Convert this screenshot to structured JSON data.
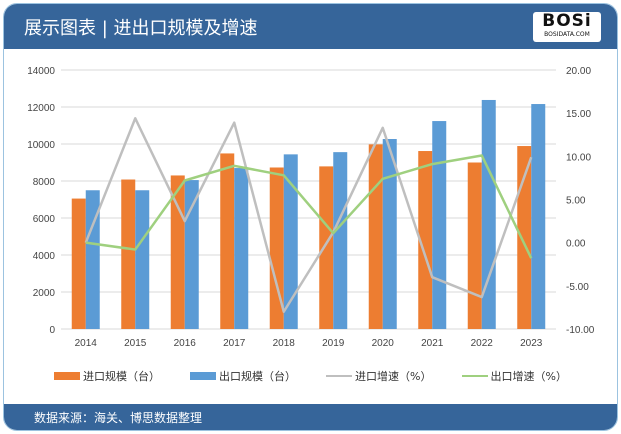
{
  "header": {
    "title": "展示图表 | 进出口规模及增速",
    "logo_text": "BOSi",
    "logo_sub": "BOSIDATA.COM"
  },
  "footer": {
    "source": "数据来源：海关、博思数据整理"
  },
  "colors": {
    "import": "#ed7d31",
    "export": "#5b9bd5",
    "import_growth": "#bfbfbf",
    "export_growth": "#9fd07f",
    "header": "#36659a"
  },
  "chart_data": {
    "type": "bar",
    "categories": [
      "2014",
      "2015",
      "2016",
      "2017",
      "2018",
      "2019",
      "2020",
      "2021",
      "2022",
      "2023"
    ],
    "series": [
      {
        "name": "进口规模（台）",
        "type": "bar",
        "axis": "left",
        "values": [
          7050,
          8080,
          8300,
          9490,
          8730,
          8790,
          9980,
          9620,
          9000,
          9890
        ]
      },
      {
        "name": "出口规模（台）",
        "type": "bar",
        "axis": "left",
        "values": [
          7500,
          7500,
          8050,
          8700,
          9440,
          9560,
          10270,
          11240,
          12380,
          12160
        ]
      },
      {
        "name": "进口增速（%）",
        "type": "line",
        "axis": "right",
        "values": [
          0.0,
          14.4,
          2.5,
          13.9,
          -8.0,
          1.2,
          13.3,
          -4.0,
          -6.3,
          9.9
        ]
      },
      {
        "name": "出口增速（%）",
        "type": "line",
        "axis": "right",
        "values": [
          0.0,
          -0.8,
          7.2,
          8.9,
          7.8,
          1.1,
          7.4,
          9.1,
          10.1,
          -1.8
        ]
      }
    ],
    "y_left": {
      "range": [
        0,
        14000
      ],
      "ticks": [
        "0",
        "2000",
        "4000",
        "6000",
        "8000",
        "10000",
        "12000",
        "14000"
      ]
    },
    "y_right": {
      "range": [
        -10,
        20
      ],
      "ticks": [
        "-10.00",
        "-5.00",
        "0.00",
        "5.00",
        "10.00",
        "15.00",
        "20.00"
      ]
    },
    "grid": true,
    "legend": "bottom"
  }
}
